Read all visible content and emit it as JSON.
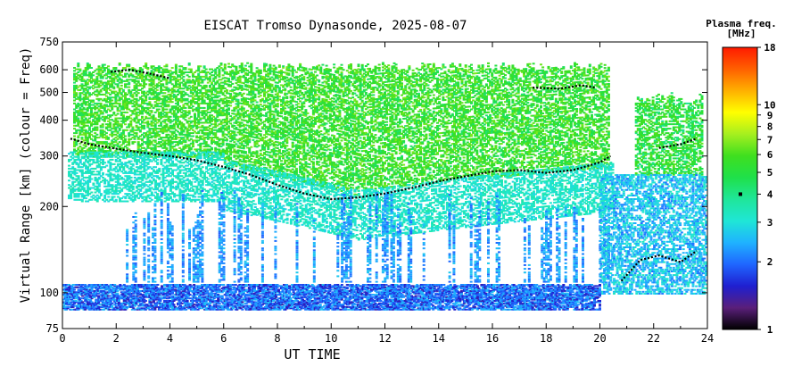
{
  "chart_data": {
    "type": "heatmap",
    "title": "EISCAT Tromso Dynasonde, 2025-08-07",
    "xlabel": "UT TIME",
    "ylabel": "Virtual Range [km] (colour = Freq)",
    "x_ticks": [
      0,
      2,
      4,
      6,
      8,
      10,
      12,
      14,
      16,
      18,
      20,
      22,
      24
    ],
    "x_range": [
      0,
      24
    ],
    "y_ticks": [
      75,
      100,
      200,
      300,
      400,
      500,
      600,
      750
    ],
    "y_range": [
      75,
      750
    ],
    "y_scale": "log",
    "colorbar": {
      "title_line1": "Plasma freq.",
      "title_line2": "[MHz]",
      "scale": "log",
      "range": [
        1,
        18
      ],
      "ticks": [
        1,
        2,
        3,
        4,
        5,
        6,
        7,
        8,
        9,
        10,
        18
      ],
      "marker_at": 4,
      "colors": [
        "#000000",
        "#5a1f7a",
        "#1f1fd0",
        "#1f66ff",
        "#1fb2ff",
        "#1fe6d6",
        "#1fe69a",
        "#1fe04a",
        "#3fdf1f",
        "#a6ef1f",
        "#ffff00",
        "#ffb000",
        "#ff6000",
        "#ff1a00"
      ]
    },
    "traces": {
      "f_region_trace_km": [
        [
          0.3,
          345
        ],
        [
          1,
          330
        ],
        [
          2,
          318
        ],
        [
          3,
          308
        ],
        [
          4,
          300
        ],
        [
          5,
          290
        ],
        [
          6,
          275
        ],
        [
          7,
          258
        ],
        [
          8,
          238
        ],
        [
          9,
          222
        ],
        [
          10,
          212
        ],
        [
          11,
          215
        ],
        [
          12,
          222
        ],
        [
          13,
          232
        ],
        [
          14,
          245
        ],
        [
          15,
          255
        ],
        [
          16,
          265
        ],
        [
          17,
          268
        ],
        [
          18,
          262
        ],
        [
          19,
          268
        ],
        [
          20,
          285
        ],
        [
          20.4,
          300
        ]
      ],
      "upper_trace_km": [
        [
          1.8,
          590
        ],
        [
          2.5,
          600
        ],
        [
          3.3,
          580
        ],
        [
          4.0,
          560
        ]
      ],
      "late_trace_km": [
        [
          17.5,
          520
        ],
        [
          18.5,
          515
        ],
        [
          19.3,
          530
        ],
        [
          19.8,
          520
        ]
      ],
      "night_trace_km": [
        [
          22.2,
          320
        ],
        [
          23,
          330
        ],
        [
          23.6,
          345
        ]
      ],
      "e_region_trace_km": [
        [
          20.8,
          110
        ],
        [
          21.5,
          130
        ],
        [
          22.2,
          135
        ],
        [
          23,
          128
        ],
        [
          23.6,
          140
        ]
      ]
    }
  }
}
